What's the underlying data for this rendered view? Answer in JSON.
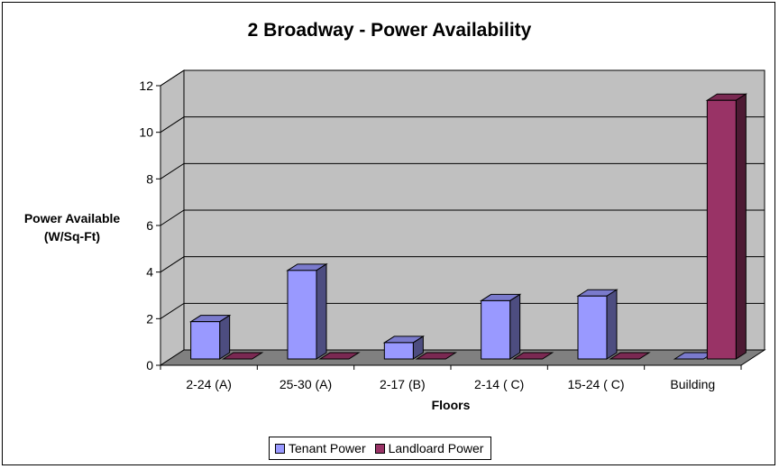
{
  "chart_data": {
    "type": "bar",
    "title": "2 Broadway - Power Availability",
    "xlabel": "Floors",
    "ylabel_line1": "Power Available",
    "ylabel_line2": "(W/Sq-Ft)",
    "categories": [
      "2-24 (A)",
      "25-30 (A)",
      "2-17 (B)",
      "2-14 ( C)",
      "15-24 ( C)",
      "Building"
    ],
    "series": [
      {
        "name": "Tenant Power",
        "color": "#9999FF",
        "side": "#4D4D80",
        "top": "#7A7ACC",
        "values": [
          1.6,
          3.8,
          0.7,
          2.5,
          2.7,
          0
        ]
      },
      {
        "name": "Landloard Power",
        "color": "#993366",
        "side": "#4D1A33",
        "top": "#7A2952",
        "values": [
          0,
          0,
          0,
          0,
          0,
          11.1
        ]
      }
    ],
    "ylim": [
      0,
      12
    ],
    "yticks": [
      0,
      2,
      4,
      6,
      8,
      10,
      12
    ],
    "grid": true,
    "legend_position": "bottom"
  }
}
